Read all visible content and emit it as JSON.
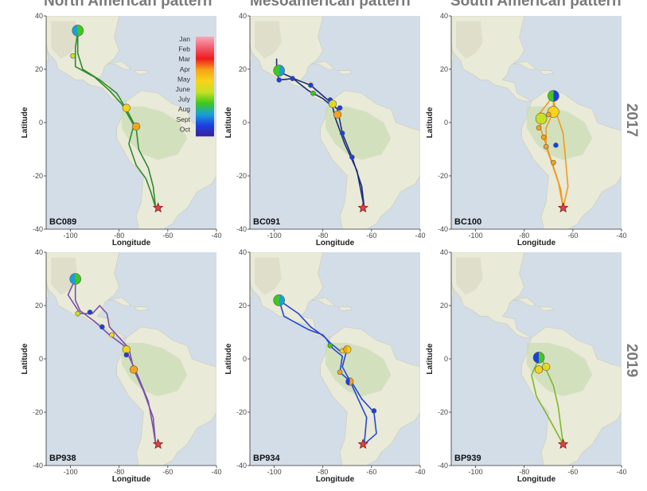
{
  "column_titles": [
    "North American pattern",
    "Mesoamerican pattern",
    "South American pattern"
  ],
  "row_labels": [
    "2017",
    "2019"
  ],
  "axes": {
    "xlabel": "Longitude",
    "ylabel": "Latitude",
    "xlim": [
      -110,
      -40
    ],
    "ylim": [
      -40,
      40
    ],
    "xticks": [
      -100,
      -80,
      -60,
      -40
    ],
    "yticks": [
      -40,
      -20,
      0,
      20,
      40
    ]
  },
  "legend": {
    "months": [
      "Jan",
      "Feb",
      "Mar",
      "Apr",
      "May",
      "June",
      "July",
      "Aug",
      "Sept",
      "Oct"
    ],
    "colors": [
      "#f6a8b5",
      "#f25c6e",
      "#ef1c1c",
      "#f6a31a",
      "#f8d318",
      "#c7e024",
      "#3ec81c",
      "#1a9fd6",
      "#1c3fe0",
      "#3a1f9c"
    ]
  },
  "chart_data": [
    {
      "type": "scatter",
      "id": "BC089",
      "row": 0,
      "col": 0,
      "track_color": "#2f8a2f",
      "tracks": [
        [
          [
            -97,
            34
          ],
          [
            -98,
            28
          ],
          [
            -98,
            21
          ],
          [
            -90,
            17
          ],
          [
            -84,
            12
          ],
          [
            -79,
            7
          ],
          [
            -74,
            -1
          ],
          [
            -76,
            -8
          ],
          [
            -73,
            -16
          ],
          [
            -69,
            -21
          ],
          [
            -67,
            -26
          ],
          [
            -65,
            -32
          ]
        ],
        [
          [
            -97,
            33
          ],
          [
            -97,
            26
          ],
          [
            -95,
            20
          ],
          [
            -88,
            16
          ],
          [
            -81,
            11
          ],
          [
            -77,
            5
          ],
          [
            -73,
            -2
          ],
          [
            -72,
            -10
          ],
          [
            -68,
            -17
          ],
          [
            -66,
            -24
          ],
          [
            -65,
            -32
          ]
        ]
      ],
      "points": [
        {
          "x": -97,
          "y": 34.5,
          "size": "large",
          "colors": [
            "#3ec81c",
            "#1a9fd6"
          ]
        },
        {
          "x": -99,
          "y": 25,
          "size": "small",
          "colors": [
            "#c7e024"
          ]
        },
        {
          "x": -77,
          "y": 5.5,
          "size": "medium",
          "colors": [
            "#f8d318"
          ]
        },
        {
          "x": -73,
          "y": -1.5,
          "size": "medium",
          "colors": [
            "#f6a31a"
          ]
        }
      ],
      "star": {
        "x": -64,
        "y": -32
      }
    },
    {
      "type": "scatter",
      "id": "BC091",
      "row": 0,
      "col": 1,
      "track_color": "#1a2d7a",
      "tracks": [
        [
          [
            -99,
            24
          ],
          [
            -99,
            19
          ],
          [
            -98,
            16
          ],
          [
            -92,
            16.5
          ],
          [
            -85,
            14
          ],
          [
            -78,
            8.5
          ],
          [
            -74,
            5
          ],
          [
            -72,
            -4
          ],
          [
            -68,
            -13
          ],
          [
            -64,
            -24
          ],
          [
            -63,
            -32
          ]
        ],
        [
          [
            -98,
            19
          ],
          [
            -93,
            17
          ],
          [
            -86,
            12
          ],
          [
            -80,
            9
          ],
          [
            -76,
            6
          ],
          [
            -75,
            2
          ],
          [
            -71,
            -8
          ],
          [
            -66,
            -18
          ],
          [
            -63,
            -32
          ]
        ]
      ],
      "points": [
        {
          "x": -98,
          "y": 19.5,
          "size": "large",
          "colors": [
            "#1a9fd6",
            "#3ec81c"
          ]
        },
        {
          "x": -98,
          "y": 16,
          "size": "small",
          "colors": [
            "#1c3fe0"
          ]
        },
        {
          "x": -92.5,
          "y": 16.5,
          "size": "small",
          "colors": [
            "#1c3fe0"
          ]
        },
        {
          "x": -85,
          "y": 14,
          "size": "small",
          "colors": [
            "#1c3fe0"
          ]
        },
        {
          "x": -84,
          "y": 11,
          "size": "small",
          "colors": [
            "#3ec81c"
          ]
        },
        {
          "x": -77,
          "y": 8.5,
          "size": "small",
          "colors": [
            "#1c3fe0"
          ]
        },
        {
          "x": -76,
          "y": 7,
          "size": "medium",
          "colors": [
            "#f8d318",
            "#c7e024"
          ]
        },
        {
          "x": -73,
          "y": 5.5,
          "size": "small",
          "colors": [
            "#1c3fe0"
          ]
        },
        {
          "x": -74,
          "y": 3,
          "size": "medium",
          "colors": [
            "#f6a31a"
          ]
        },
        {
          "x": -72,
          "y": -4,
          "size": "small",
          "colors": [
            "#1c3fe0"
          ]
        },
        {
          "x": -68,
          "y": -13,
          "size": "small",
          "colors": [
            "#1c3fe0"
          ]
        }
      ],
      "star": {
        "x": -63.5,
        "y": -32
      }
    },
    {
      "type": "scatter",
      "id": "BC100",
      "row": 0,
      "col": 2,
      "track_color": "#f19a1c",
      "tracks": [
        [
          [
            -68,
            10
          ],
          [
            -68,
            4
          ],
          [
            -71,
            -2
          ],
          [
            -71,
            -9
          ],
          [
            -68,
            -17
          ],
          [
            -65,
            -25
          ],
          [
            -64,
            -32
          ]
        ],
        [
          [
            -68,
            10
          ],
          [
            -74,
            3
          ],
          [
            -73,
            -3
          ],
          [
            -70,
            -11
          ],
          [
            -66,
            -22
          ],
          [
            -64,
            -32
          ]
        ],
        [
          [
            -68,
            9
          ],
          [
            -67,
            4
          ],
          [
            -64,
            -4
          ],
          [
            -63,
            -14
          ],
          [
            -62,
            -24
          ],
          [
            -64,
            -32
          ]
        ]
      ],
      "points": [
        {
          "x": -68,
          "y": 10,
          "size": "large",
          "colors": [
            "#1c3fe0",
            "#3ec81c"
          ]
        },
        {
          "x": -68,
          "y": 4,
          "size": "large",
          "colors": [
            "#f8d318"
          ]
        },
        {
          "x": -73,
          "y": 1.5,
          "size": "large",
          "colors": [
            "#c7e024"
          ]
        },
        {
          "x": -74,
          "y": -2,
          "size": "small",
          "colors": [
            "#f6a31a"
          ]
        },
        {
          "x": -72,
          "y": -5.5,
          "size": "small",
          "colors": [
            "#f6a31a"
          ]
        },
        {
          "x": -70,
          "y": 3,
          "size": "small",
          "colors": [
            "#f6a31a"
          ]
        },
        {
          "x": -71,
          "y": -9,
          "size": "small",
          "colors": [
            "#f6a31a"
          ]
        },
        {
          "x": -67,
          "y": -8.5,
          "size": "small",
          "colors": [
            "#1c3fe0"
          ]
        },
        {
          "x": -68,
          "y": -15,
          "size": "small",
          "colors": [
            "#f6a31a"
          ]
        }
      ],
      "star": {
        "x": -64,
        "y": -32
      }
    },
    {
      "type": "scatter",
      "id": "BP938",
      "row": 1,
      "col": 0,
      "track_color": "#7b52a8",
      "tracks": [
        [
          [
            -98,
            30
          ],
          [
            -101,
            24
          ],
          [
            -96,
            17
          ],
          [
            -91,
            17
          ],
          [
            -88,
            20
          ],
          [
            -85,
            17
          ],
          [
            -84,
            12
          ],
          [
            -80,
            8
          ],
          [
            -76,
            4
          ],
          [
            -74,
            -4
          ],
          [
            -70,
            -12
          ],
          [
            -66,
            -22
          ],
          [
            -65,
            -32
          ]
        ],
        [
          [
            -98,
            30
          ],
          [
            -98,
            22
          ],
          [
            -96,
            18
          ],
          [
            -90,
            14
          ],
          [
            -84,
            9
          ],
          [
            -78,
            5
          ],
          [
            -76,
            1
          ],
          [
            -72,
            -7
          ],
          [
            -68,
            -16
          ],
          [
            -66,
            -26
          ],
          [
            -65,
            -32
          ]
        ]
      ],
      "points": [
        {
          "x": -98,
          "y": 30,
          "size": "large",
          "colors": [
            "#3ec81c",
            "#1a9fd6"
          ]
        },
        {
          "x": -97,
          "y": 17,
          "size": "small",
          "colors": [
            "#c7e024"
          ]
        },
        {
          "x": -92,
          "y": 17.5,
          "size": "small",
          "colors": [
            "#1c3fe0"
          ]
        },
        {
          "x": -87,
          "y": 12,
          "size": "small",
          "colors": [
            "#1c3fe0"
          ]
        },
        {
          "x": -83,
          "y": 9,
          "size": "small",
          "colors": [
            "#f8d318"
          ]
        },
        {
          "x": -77,
          "y": 3.5,
          "size": "medium",
          "colors": [
            "#f8d318"
          ]
        },
        {
          "x": -77,
          "y": 1.5,
          "size": "small",
          "colors": [
            "#1c3fe0"
          ]
        },
        {
          "x": -74,
          "y": -4,
          "size": "medium",
          "colors": [
            "#f6a31a"
          ]
        }
      ],
      "star": {
        "x": -64,
        "y": -32
      }
    },
    {
      "type": "scatter",
      "id": "BP934",
      "row": 1,
      "col": 1,
      "track_color": "#2647d0",
      "tracks": [
        [
          [
            -98,
            22
          ],
          [
            -96,
            16
          ],
          [
            -92,
            14
          ],
          [
            -86,
            11
          ],
          [
            -80,
            9
          ],
          [
            -77,
            6
          ],
          [
            -73,
            3
          ],
          [
            -70,
            4
          ],
          [
            -72,
            -3
          ],
          [
            -69,
            -8
          ],
          [
            -66,
            -14
          ],
          [
            -62,
            -22
          ],
          [
            -63,
            -32
          ]
        ],
        [
          [
            -98,
            22
          ],
          [
            -90,
            17
          ],
          [
            -85,
            12
          ],
          [
            -79,
            8
          ],
          [
            -76,
            4
          ],
          [
            -72,
            1
          ],
          [
            -73,
            -5
          ],
          [
            -68,
            -9
          ],
          [
            -64,
            -15
          ],
          [
            -59,
            -20
          ],
          [
            -58,
            -28
          ],
          [
            -63,
            -32
          ]
        ]
      ],
      "points": [
        {
          "x": -98,
          "y": 22,
          "size": "large",
          "colors": [
            "#1a9fd6",
            "#3ec81c"
          ]
        },
        {
          "x": -77,
          "y": 5,
          "size": "small",
          "colors": [
            "#3ec81c"
          ]
        },
        {
          "x": -72,
          "y": 3,
          "size": "small",
          "colors": [
            "#f8d318"
          ]
        },
        {
          "x": -70,
          "y": 3.5,
          "size": "medium",
          "colors": [
            "#f8d318",
            "#f6a31a"
          ]
        },
        {
          "x": -73,
          "y": -5,
          "size": "small",
          "colors": [
            "#f6a31a"
          ]
        },
        {
          "x": -69,
          "y": -8.5,
          "size": "medium",
          "colors": [
            "#f6a31a",
            "#1c3fe0"
          ]
        },
        {
          "x": -59,
          "y": -19.5,
          "size": "small",
          "colors": [
            "#1c3fe0"
          ]
        }
      ],
      "star": {
        "x": -63.5,
        "y": -32
      }
    },
    {
      "type": "scatter",
      "id": "BP939",
      "row": 1,
      "col": 2,
      "track_color": "#7fb82a",
      "tracks": [
        [
          [
            -74,
            0
          ],
          [
            -77,
            -6
          ],
          [
            -75,
            -14
          ],
          [
            -70,
            -22
          ],
          [
            -64,
            -32
          ]
        ],
        [
          [
            -73,
            1
          ],
          [
            -71,
            -4
          ],
          [
            -68,
            -10
          ],
          [
            -66,
            -18
          ],
          [
            -64,
            -32
          ]
        ]
      ],
      "points": [
        {
          "x": -74,
          "y": 0.5,
          "size": "large",
          "colors": [
            "#3ec81c",
            "#1c3fe0"
          ]
        },
        {
          "x": -71,
          "y": -3,
          "size": "medium",
          "colors": [
            "#f8d318",
            "#c7e024"
          ]
        },
        {
          "x": -74,
          "y": -4,
          "size": "medium",
          "colors": [
            "#f8d318"
          ]
        }
      ],
      "star": {
        "x": -64,
        "y": -32
      }
    }
  ]
}
